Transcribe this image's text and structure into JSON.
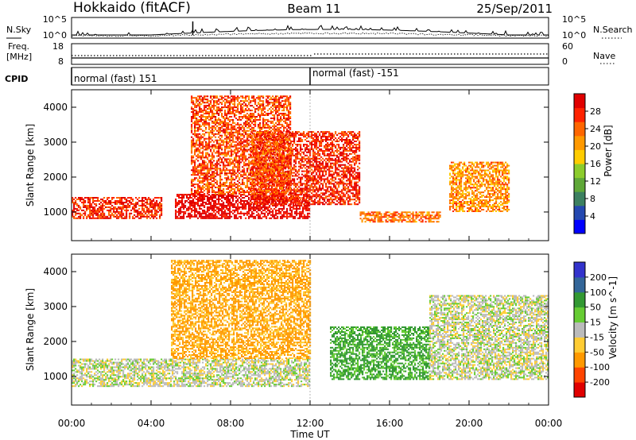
{
  "header": {
    "station": "Hokkaido (fitACF)",
    "beam": "Beam 11",
    "date": "25/Sep/2011"
  },
  "noise_panel": {
    "left_label": "N.Sky",
    "right_label": "N.Search",
    "left_ticks": [
      "10^5",
      "10^0"
    ],
    "right_ticks": [
      "10^5",
      "10^0"
    ]
  },
  "freq_panel": {
    "left_label_1": "Freq.",
    "left_label_2": "[MHz]",
    "right_label": "Nave",
    "left_ticks": [
      "18",
      "8"
    ],
    "right_ticks": [
      "60",
      "0"
    ]
  },
  "cpid_panel": {
    "label": "CPID",
    "segments": [
      "normal (fast) 151",
      "normal (fast) -151"
    ]
  },
  "x_axis": {
    "label": "Time UT",
    "ticks": [
      "00:00",
      "04:00",
      "08:00",
      "12:00",
      "16:00",
      "20:00",
      "00:00"
    ]
  },
  "colors": {
    "power": [
      "#0000ff",
      "#2448b0",
      "#3c8060",
      "#5fa838",
      "#8ccc2c",
      "#ffcc00",
      "#ff9900",
      "#ff6600",
      "#ff2200",
      "#e00000"
    ],
    "velocity": [
      "#e00000",
      "#ff4400",
      "#ff9900",
      "#ffcc33",
      "#bbbbbb",
      "#66cc33",
      "#339933",
      "#336699",
      "#3333cc"
    ]
  },
  "chart_data": [
    {
      "type": "heatmap",
      "title": "",
      "xlabel": "Time UT",
      "ylabel": "Slant Range [km]",
      "xlim": [
        0,
        24
      ],
      "ylim": [
        180,
        4500
      ],
      "yticks": [
        "1000",
        "2000",
        "3000",
        "4000"
      ],
      "colorbar_label": "Power [dB]",
      "colorbar_ticks": [
        "28",
        "24",
        "20",
        "16",
        "12",
        "8",
        "4"
      ],
      "features": [
        {
          "start": 0,
          "end": 4.5,
          "range": [
            800,
            1400
          ],
          "level": 26
        },
        {
          "start": 5.2,
          "end": 12,
          "range": [
            800,
            1500
          ],
          "level": 30
        },
        {
          "start": 9,
          "end": 14.5,
          "range": [
            1200,
            3300
          ],
          "level": 26
        },
        {
          "start": 14.5,
          "end": 18.5,
          "range": [
            700,
            1000
          ],
          "level": 22
        },
        {
          "start": 19,
          "end": 22,
          "range": [
            1000,
            2400
          ],
          "level": 20
        },
        {
          "start": 6,
          "end": 11,
          "range": [
            1500,
            4300
          ],
          "level": 24
        }
      ]
    },
    {
      "type": "heatmap",
      "title": "",
      "xlabel": "Time UT",
      "ylabel": "Slant Range [km]",
      "xlim": [
        0,
        24
      ],
      "ylim": [
        180,
        4500
      ],
      "yticks": [
        "1000",
        "2000",
        "3000",
        "4000"
      ],
      "colorbar_label": "Velocity [m s^-1]",
      "colorbar_ticks": [
        "200",
        "100",
        "50",
        "15",
        "-15",
        "-50",
        "-100",
        "-200"
      ],
      "features": [
        {
          "start": 0,
          "end": 12,
          "range": [
            700,
            1500
          ],
          "velocity": 0
        },
        {
          "start": 5,
          "end": 12,
          "range": [
            1500,
            4300
          ],
          "velocity": -60
        },
        {
          "start": 13,
          "end": 18,
          "range": [
            900,
            2400
          ],
          "velocity": 60
        },
        {
          "start": 18,
          "end": 24,
          "range": [
            900,
            3300
          ],
          "velocity": 0
        }
      ]
    }
  ]
}
